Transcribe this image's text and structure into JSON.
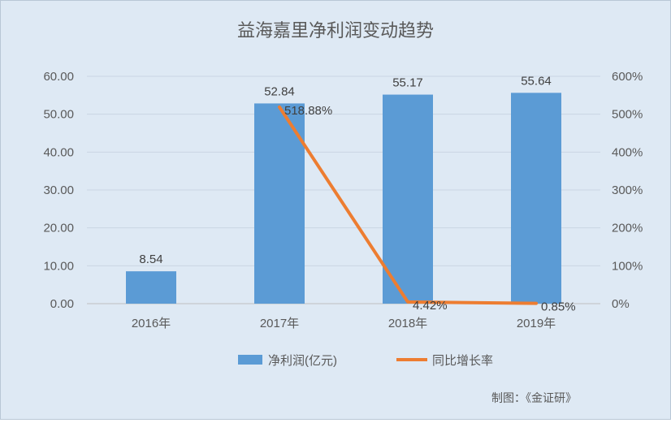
{
  "chart_data": {
    "type": "bar",
    "title": "益海嘉里净利润变动趋势",
    "categories": [
      "2016年",
      "2017年",
      "2018年",
      "2019年"
    ],
    "series": [
      {
        "name": "净利润(亿元)",
        "type": "bar",
        "axis": "left",
        "values": [
          8.54,
          52.84,
          55.17,
          55.64
        ],
        "labels": [
          "8.54",
          "52.84",
          "55.17",
          "55.64"
        ],
        "color": "#5b9bd5"
      },
      {
        "name": "同比增长率",
        "type": "line",
        "axis": "right",
        "values": [
          null,
          518.88,
          4.42,
          0.85
        ],
        "labels": [
          "",
          "518.88%",
          "4.42%",
          "0.85%"
        ],
        "color": "#ed7d31"
      }
    ],
    "y_left": {
      "ylim": [
        0,
        60
      ],
      "ticks": [
        "0.00",
        "10.00",
        "20.00",
        "30.00",
        "40.00",
        "50.00",
        "60.00"
      ]
    },
    "y_right": {
      "ylim": [
        0,
        600
      ],
      "ticks": [
        "0%",
        "100%",
        "200%",
        "300%",
        "400%",
        "500%",
        "600%"
      ]
    },
    "grid": true,
    "legend": "bottom",
    "source_note": "制图：《金证研》"
  }
}
